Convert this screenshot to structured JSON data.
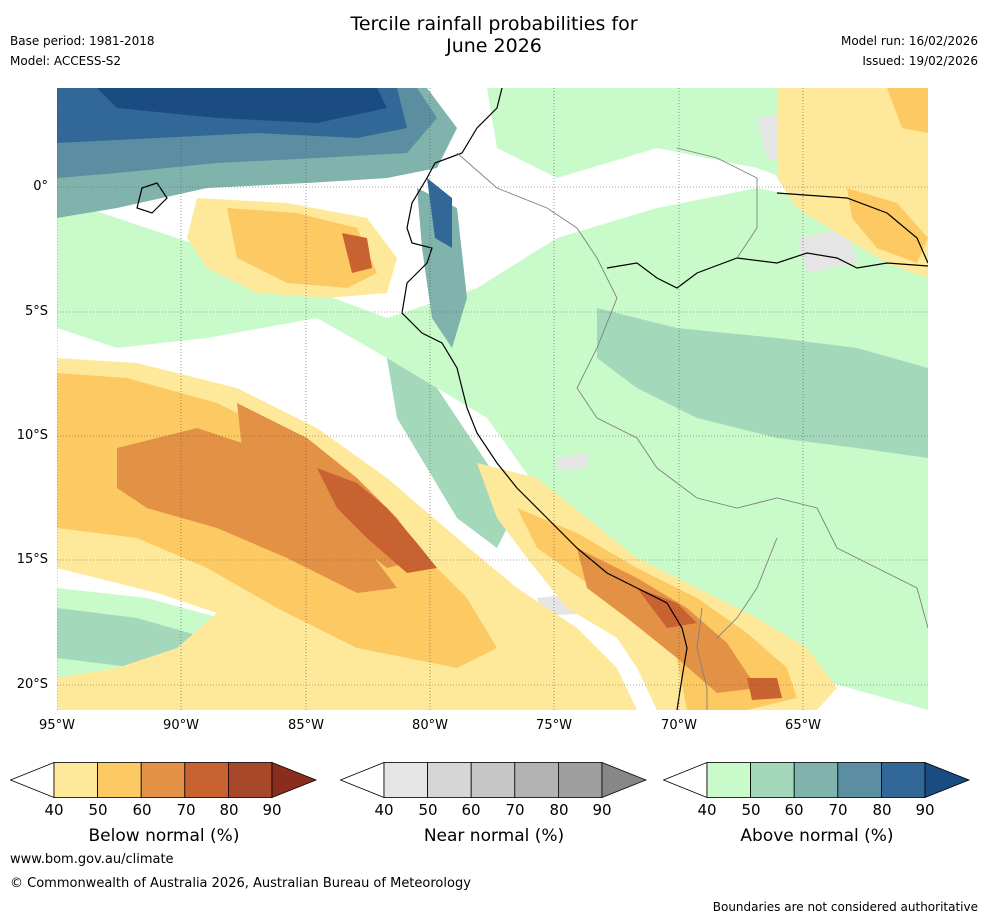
{
  "title_line1": "Tercile rainfall probabilities for",
  "title_line2": "June 2026",
  "base_period": "Base period: 1981-2018",
  "model": "Model: ACCESS-S2",
  "model_run": "Model run: 16/02/2026",
  "issued": "Issued: 19/02/2026",
  "lat_labels": [
    "0°",
    "5°S",
    "10°S",
    "15°S",
    "20°S"
  ],
  "lon_labels": [
    "95°W",
    "90°W",
    "85°W",
    "80°W",
    "75°W",
    "70°W",
    "65°W"
  ],
  "colorbars": [
    {
      "title": "Below normal (%)",
      "ticks": [
        "40",
        "50",
        "60",
        "70",
        "80",
        "90"
      ],
      "colors": [
        "#ffffff",
        "#fee99b",
        "#fdc962",
        "#e29145",
        "#c96231",
        "#a8482a",
        "#8b2d1d"
      ]
    },
    {
      "title": "Near normal (%)",
      "ticks": [
        "40",
        "50",
        "60",
        "70",
        "80",
        "90"
      ],
      "colors": [
        "#ffffff",
        "#e5e5e5",
        "#d6d6d6",
        "#c6c6c6",
        "#b3b3b3",
        "#9e9e9e",
        "#878787"
      ]
    },
    {
      "title": "Above normal (%)",
      "ticks": [
        "40",
        "50",
        "60",
        "70",
        "80",
        "90"
      ],
      "colors": [
        "#ffffff",
        "#c9fbca",
        "#a3d8bb",
        "#7fb3ac",
        "#5a8ea0",
        "#326897",
        "#1a4c82"
      ]
    }
  ],
  "url": "www.bom.gov.au/climate",
  "copyright": "© Commonwealth of Australia 2026, Australian Bureau of Meteorology",
  "disclaimer": "Boundaries are not considered authoritative"
}
